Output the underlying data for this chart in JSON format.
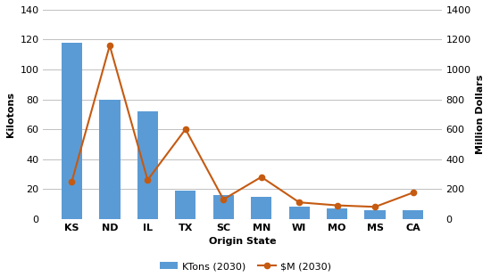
{
  "categories": [
    "KS",
    "ND",
    "IL",
    "TX",
    "SC",
    "MN",
    "WI",
    "MO",
    "MS",
    "CA"
  ],
  "ktons": [
    118,
    80,
    72,
    19,
    16,
    15,
    8,
    7,
    6,
    5.5
  ],
  "dollars": [
    250,
    1160,
    260,
    600,
    130,
    280,
    110,
    90,
    80,
    175
  ],
  "bar_color": "#5B9BD5",
  "line_color": "#C55A11",
  "bar_label": "KTons (2030)",
  "line_label": "$M (2030)",
  "xlabel": "Origin State",
  "ylabel_left": "Kilotons",
  "ylabel_right": "Million Dollars",
  "ylim_left": [
    0,
    140
  ],
  "ylim_right": [
    0,
    1400
  ],
  "yticks_left": [
    0,
    20,
    40,
    60,
    80,
    100,
    120,
    140
  ],
  "yticks_right": [
    0,
    200,
    400,
    600,
    800,
    1000,
    1200,
    1400
  ],
  "bg_color": "#FFFFFF",
  "grid_color": "#C0C0C0"
}
